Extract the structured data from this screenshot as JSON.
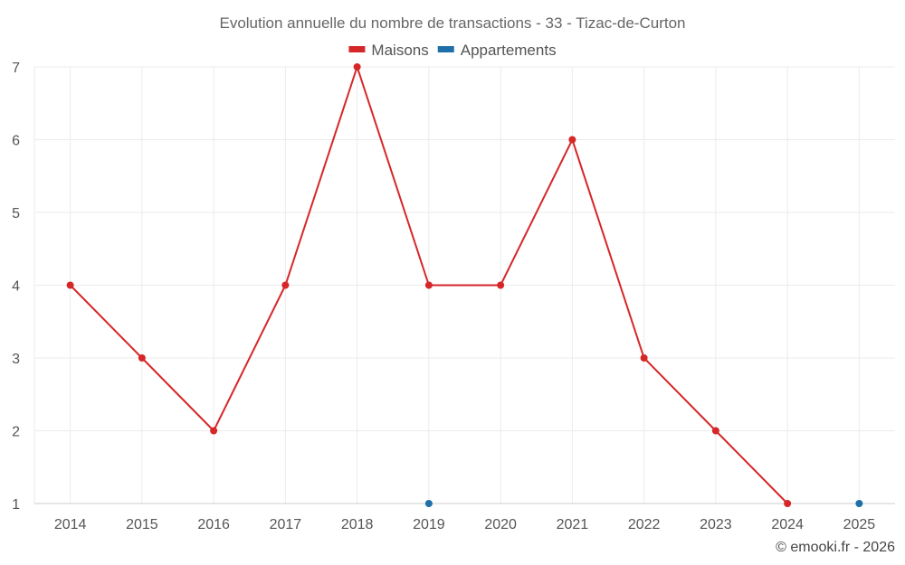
{
  "chart_data": {
    "type": "line",
    "title": "Evolution annuelle du nombre de transactions - 33 - Tizac-de-Curton",
    "categories": [
      "2014",
      "2015",
      "2016",
      "2017",
      "2018",
      "2019",
      "2020",
      "2021",
      "2022",
      "2023",
      "2024",
      "2025"
    ],
    "series": [
      {
        "name": "Maisons",
        "color": "#d62728",
        "values": [
          4,
          3,
          2,
          4,
          7,
          4,
          4,
          6,
          3,
          2,
          1,
          null
        ]
      },
      {
        "name": "Appartements",
        "color": "#1f6fa8",
        "values": [
          null,
          null,
          null,
          null,
          null,
          1,
          null,
          null,
          null,
          null,
          null,
          1
        ]
      }
    ],
    "ylim": [
      1,
      7
    ],
    "yticks": [
      1,
      2,
      3,
      4,
      5,
      6,
      7
    ],
    "grid": true,
    "legend": "top-center",
    "xlabel": "",
    "ylabel": ""
  },
  "credit": "© emooki.fr - 2026"
}
